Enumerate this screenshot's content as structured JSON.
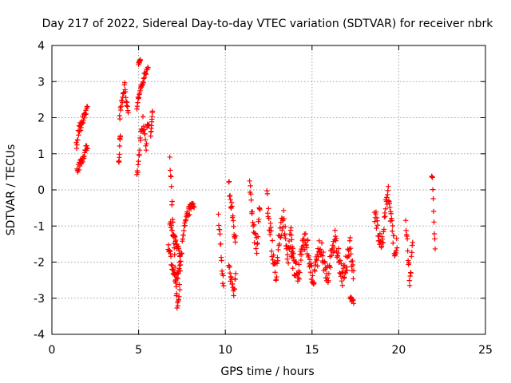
{
  "chart_data": {
    "type": "scatter",
    "title": "Day 217 of 2022, Sidereal Day-to-day VTEC variation (SDTVAR) for receiver nbrk",
    "xlabel": "GPS time / hours",
    "ylabel": "SDTVAR / TECUs",
    "xlim": [
      0,
      25
    ],
    "ylim": [
      -4,
      4
    ],
    "xticks": [
      0,
      5,
      10,
      15,
      20,
      25
    ],
    "yticks": [
      -4,
      -3,
      -2,
      -1,
      0,
      1,
      2,
      3,
      4
    ],
    "xtick_labels": [
      "0",
      "5",
      "10",
      "15",
      "20",
      "25"
    ],
    "ytick_labels": [
      "-4",
      "-3",
      "-2",
      "-1",
      "0",
      "1",
      "2",
      "3",
      "4"
    ],
    "grid": true,
    "marker": "plus",
    "color": "#ff0000",
    "segments": [
      {
        "x0": 1.4,
        "x1": 2.05,
        "ys": [
          1.2,
          1.6,
          1.8,
          2.0,
          2.2,
          2.3
        ],
        "jitter": 0.15
      },
      {
        "x0": 1.45,
        "x1": 2.05,
        "ys": [
          0.55,
          0.65,
          0.8,
          0.9,
          1.1,
          1.2
        ],
        "jitter": 0.1
      },
      {
        "x0": 3.9,
        "x1": 4.4,
        "ys": [
          2.0,
          2.3,
          2.6,
          2.9,
          2.4,
          2.1
        ],
        "jitter": 0.15
      },
      {
        "x0": 3.85,
        "x1": 3.95,
        "ys": [
          0.75,
          0.85,
          1.4,
          1.5
        ],
        "jitter": 0.05
      },
      {
        "x0": 4.9,
        "x1": 5.55,
        "ys": [
          2.3,
          2.6,
          2.9,
          3.1,
          3.3,
          3.45
        ],
        "jitter": 0.12
      },
      {
        "x0": 4.9,
        "x1": 5.6,
        "ys": [
          0.4,
          0.8,
          1.2,
          1.6,
          1.9,
          1.5,
          1.2,
          1.8,
          2.0
        ],
        "jitter": 0.2
      },
      {
        "x0": 5.0,
        "x1": 5.1,
        "ys": [
          3.5,
          3.6
        ],
        "jitter": 0.03
      },
      {
        "x0": 5.7,
        "x1": 5.8,
        "ys": [
          1.5,
          2.2
        ],
        "jitter": 0.05
      },
      {
        "x0": 6.8,
        "x1": 7.4,
        "ys": [
          0.8,
          0.2,
          -0.6,
          -1.4,
          -2.2,
          -2.9,
          -3.3,
          -3.0,
          -2.4
        ],
        "jitter": 0.2
      },
      {
        "x0": 6.7,
        "x1": 8.2,
        "ys": [
          -1.5,
          -1.9,
          -2.3,
          -2.6,
          -2.3,
          -1.8,
          -1.2,
          -0.8,
          -0.6,
          -0.5,
          -0.5
        ],
        "jitter": 0.15
      },
      {
        "x0": 6.8,
        "x1": 7.4,
        "ys": [
          -0.9,
          -1.1,
          -1.3,
          -1.5,
          -1.6,
          -1.8
        ],
        "jitter": 0.1
      },
      {
        "x0": 9.6,
        "x1": 9.9,
        "ys": [
          -0.8,
          -1.2,
          -1.5,
          -1.9,
          -2.4,
          -2.6
        ],
        "jitter": 0.15
      },
      {
        "x0": 10.2,
        "x1": 10.6,
        "ys": [
          0.2,
          -0.3,
          -0.6,
          -1.2,
          -1.4
        ],
        "jitter": 0.15
      },
      {
        "x0": 10.2,
        "x1": 10.6,
        "ys": [
          -2.1,
          -2.4,
          -2.7,
          -2.8,
          -2.3
        ],
        "jitter": 0.15
      },
      {
        "x0": 11.4,
        "x1": 12.0,
        "ys": [
          0.3,
          -0.2,
          -0.8,
          -1.2,
          -1.5,
          -1.6,
          -1.0,
          -0.3
        ],
        "jitter": 0.3
      },
      {
        "x0": 12.4,
        "x1": 13.9,
        "ys": [
          -0.3,
          -0.9,
          -1.5,
          -2.0,
          -2.3,
          -1.4,
          -1.0,
          -0.8,
          -1.4,
          -2.0,
          -1.2,
          -1.5
        ],
        "jitter": 0.3
      },
      {
        "x0": 13.8,
        "x1": 17.4,
        "ys": [
          -1.8,
          -2.2,
          -2.4,
          -1.6,
          -1.3,
          -2.0,
          -2.5,
          -1.9,
          -1.5,
          -2.1,
          -2.3,
          -1.7,
          -1.3,
          -1.9,
          -2.4,
          -2.1,
          -1.5,
          -2.3
        ],
        "jitter": 0.3
      },
      {
        "x0": 17.2,
        "x1": 17.4,
        "ys": [
          -3.0,
          -3.1
        ],
        "jitter": 0.05
      },
      {
        "x0": 18.6,
        "x1": 19.9,
        "ys": [
          -0.6,
          -0.9,
          -1.3,
          -1.6,
          -1.2,
          -0.5,
          0.0,
          -0.7,
          -1.2,
          -1.7,
          -1.4
        ],
        "jitter": 0.25
      },
      {
        "x0": 20.4,
        "x1": 20.8,
        "ys": [
          -0.7,
          -1.4,
          -1.8,
          -2.3,
          -2.6,
          -2.0,
          -1.4
        ],
        "jitter": 0.25
      },
      {
        "x0": 21.9,
        "x1": 22.1,
        "ys": [
          0.45,
          0.35,
          -0.2,
          -0.7,
          -1.3,
          -1.6
        ],
        "jitter": 0.1
      }
    ]
  }
}
